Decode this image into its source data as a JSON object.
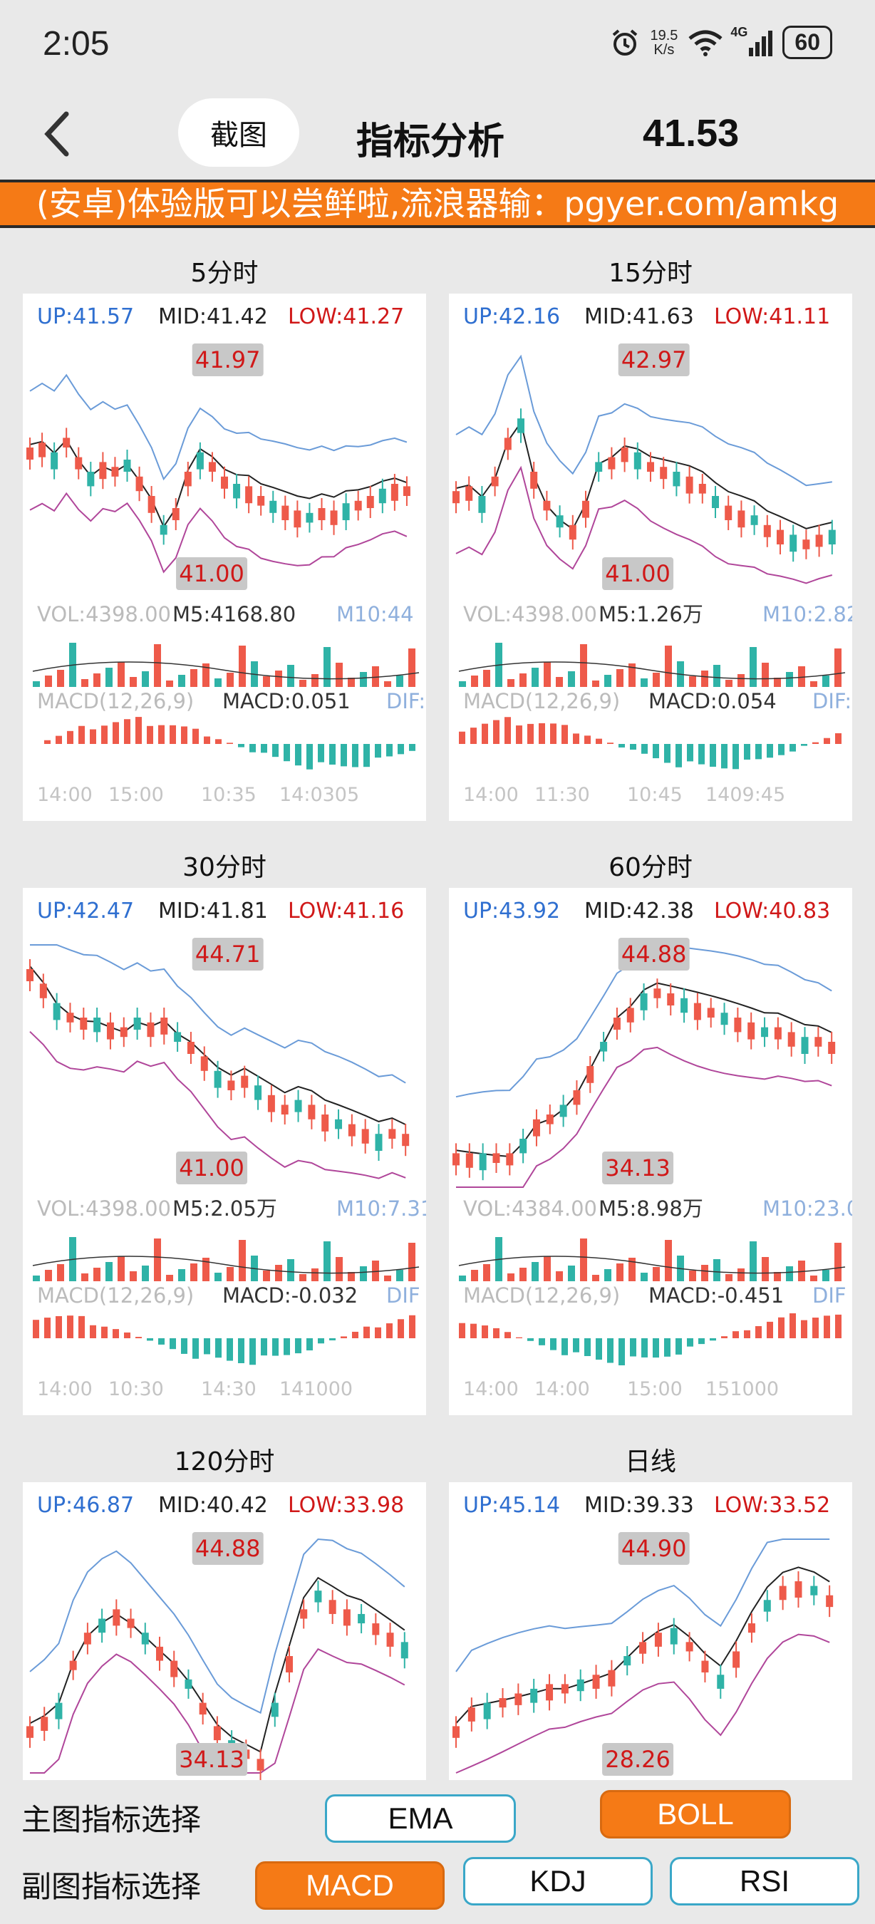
{
  "status": {
    "time": "2:05",
    "net_speed_value": "19.5",
    "net_speed_unit": "K/s",
    "network": "4G",
    "battery": "60"
  },
  "header": {
    "screenshot_label": "截图",
    "title": "指标分析",
    "price": "41.53"
  },
  "banner": {
    "text": "(安卓)体验版可以尝鲜啦,流浪器输：pgyer.com/amkg"
  },
  "colors": {
    "accent": "#f57a16",
    "up_candle": "#ee5a4a",
    "down_candle": "#2fb3a7",
    "boll_upper": "#6a9bd8",
    "boll_lower": "#b0469a",
    "label_up": "#2f6fd0",
    "label_low": "#d01818"
  },
  "panels": [
    {
      "title": "5分时",
      "up": "UP:41.57",
      "mid": "MID:41.42",
      "low": "LOW:41.27",
      "hi_tag": "41.97",
      "lo_tag": "41.00",
      "vol": "VOL:4398.00",
      "m5": "M5:4168.80",
      "m10": "M10:44",
      "macd_name": "MACD(12,26,9)",
      "macd_val": "MACD:0.051",
      "dif": "DIF:",
      "times": [
        "14:00",
        "15:00",
        "10:35",
        "14:0305"
      ]
    },
    {
      "title": "15分时",
      "up": "UP:42.16",
      "mid": "MID:41.63",
      "low": "LOW:41.11",
      "hi_tag": "42.97",
      "lo_tag": "41.00",
      "vol": "VOL:4398.00",
      "m5": "M5:1.26万",
      "m10": "M10:2.82",
      "macd_name": "MACD(12,26,9)",
      "macd_val": "MACD:0.054",
      "dif": "DIF:",
      "times": [
        "14:00",
        "11:30",
        "10:45",
        "1409:45"
      ]
    },
    {
      "title": "30分时",
      "up": "UP:42.47",
      "mid": "MID:41.81",
      "low": "LOW:41.16",
      "hi_tag": "44.71",
      "lo_tag": "41.00",
      "vol": "VOL:4398.00",
      "m5": "M5:2.05万",
      "m10": "M10:7.31",
      "macd_name": "MACD(12,26,9)",
      "macd_val": "MACD:-0.032",
      "dif": "DIF",
      "times": [
        "14:00",
        "10:30",
        "14:30",
        "141000"
      ]
    },
    {
      "title": "60分时",
      "up": "UP:43.92",
      "mid": "MID:42.38",
      "low": "LOW:40.83",
      "hi_tag": "44.88",
      "lo_tag": "34.13",
      "vol": "VOL:4384.00",
      "m5": "M5:8.98万",
      "m10": "M10:23.0",
      "macd_name": "MACD(12,26,9)",
      "macd_val": "MACD:-0.451",
      "dif": "DIF",
      "times": [
        "14:00",
        "14:00",
        "15:00",
        "151000"
      ]
    },
    {
      "title": "120分时",
      "up": "UP:46.87",
      "mid": "MID:40.42",
      "low": "LOW:33.98",
      "hi_tag": "44.88",
      "lo_tag": "34.13"
    },
    {
      "title": "日线",
      "up": "UP:45.14",
      "mid": "MID:39.33",
      "low": "LOW:33.52",
      "hi_tag": "44.90",
      "lo_tag": "28.26"
    }
  ],
  "controls": {
    "main_label": "主图指标选择",
    "sub_label": "副图指标选择",
    "ema": "EMA",
    "boll": "BOLL",
    "macd": "MACD",
    "kdj": "KDJ",
    "rsi": "RSI",
    "main_selected": "BOLL",
    "sub_selected": "MACD"
  }
}
